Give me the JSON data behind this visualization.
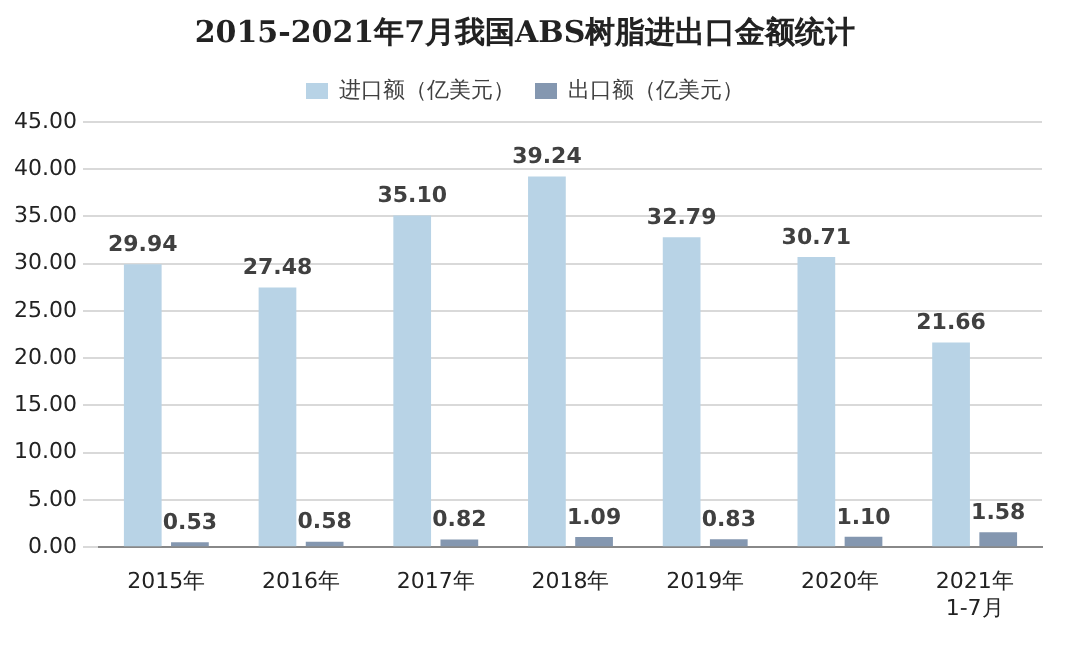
{
  "chart_data": {
    "type": "bar",
    "title": "2015-2021年7月我国ABS树脂进出口金额统计",
    "categories": [
      "2015年",
      "2016年",
      "2017年",
      "2018年",
      "2019年",
      "2020年",
      "2021年\n1-7月"
    ],
    "series": [
      {
        "name": "进口额（亿美元）",
        "color": "#b8d3e6",
        "values": [
          29.94,
          27.48,
          35.1,
          39.24,
          32.79,
          30.71,
          21.66
        ],
        "value_labels": [
          "29.94",
          "27.48",
          "35.10",
          "39.24",
          "32.79",
          "30.71",
          "21.66"
        ]
      },
      {
        "name": "出口额（亿美元）",
        "color": "#8497b0",
        "values": [
          0.53,
          0.58,
          0.82,
          1.09,
          0.83,
          1.1,
          1.58
        ],
        "value_labels": [
          "0.53",
          "0.58",
          "0.82",
          "1.09",
          "0.83",
          "1.10",
          "1.58"
        ]
      }
    ],
    "ylim": [
      0,
      45
    ],
    "yticks": [
      {
        "value": 0,
        "label": "0.00"
      },
      {
        "value": 5,
        "label": "5.00"
      },
      {
        "value": 10,
        "label": "10.00"
      },
      {
        "value": 15,
        "label": "15.00"
      },
      {
        "value": 20,
        "label": "20.00"
      },
      {
        "value": 25,
        "label": "25.00"
      },
      {
        "value": 30,
        "label": "30.00"
      },
      {
        "value": 35,
        "label": "35.00"
      },
      {
        "value": 40,
        "label": "40.00"
      },
      {
        "value": 45,
        "label": "45.00"
      }
    ],
    "grid": "y",
    "legend": "top"
  }
}
